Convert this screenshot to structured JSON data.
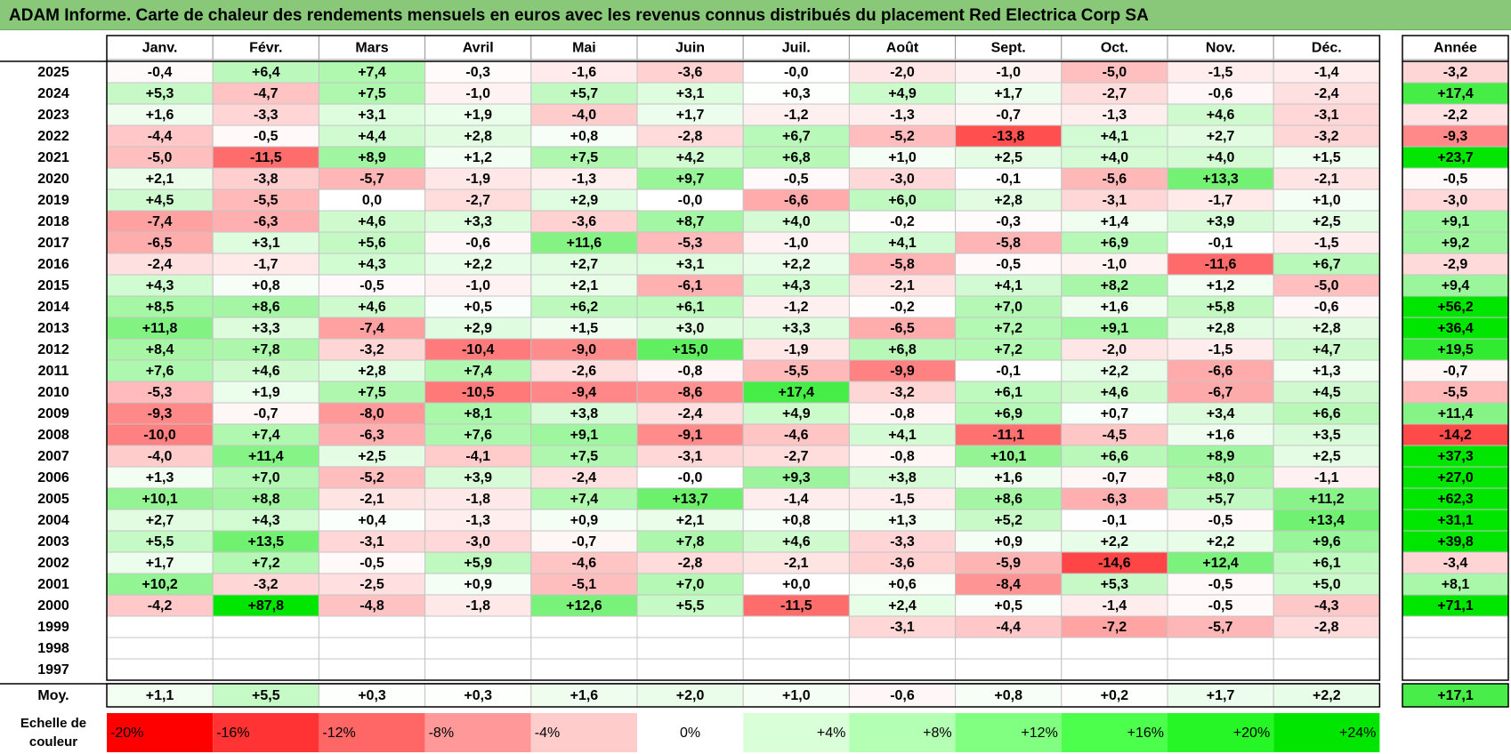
{
  "title": "ADAM Informe. Carte de chaleur des rendements mensuels en euros avec les revenus connus distribués du placement Red Electrica Corp SA",
  "chart_data": {
    "type": "heatmap",
    "title": "ADAM Informe. Carte de chaleur des rendements mensuels en euros avec les revenus connus distribués du placement Red Electrica Corp SA",
    "months": [
      "Janv.",
      "Févr.",
      "Mars",
      "Avril",
      "Mai",
      "Juin",
      "Juil.",
      "Août",
      "Sept.",
      "Oct.",
      "Nov.",
      "Déc."
    ],
    "year_column_label": "Année",
    "rows": [
      {
        "year": "2025",
        "values": [
          "-0,4",
          "+6,4",
          "+7,4",
          "-0,3",
          "-1,6",
          "-3,6",
          "-0,0",
          "-2,0",
          "-1,0",
          "-5,0",
          "-1,5",
          "-1,4"
        ],
        "annual": "-3,2"
      },
      {
        "year": "2024",
        "values": [
          "+5,3",
          "-4,7",
          "+7,5",
          "-1,0",
          "+5,7",
          "+3,1",
          "+0,3",
          "+4,9",
          "+1,7",
          "-2,7",
          "-0,6",
          "-2,4"
        ],
        "annual": "+17,4"
      },
      {
        "year": "2023",
        "values": [
          "+1,6",
          "-3,3",
          "+3,1",
          "+1,9",
          "-4,0",
          "+1,7",
          "-1,2",
          "-1,3",
          "-0,7",
          "-1,3",
          "+4,6",
          "-3,1"
        ],
        "annual": "-2,2"
      },
      {
        "year": "2022",
        "values": [
          "-4,4",
          "-0,5",
          "+4,4",
          "+2,8",
          "+0,8",
          "-2,8",
          "+6,7",
          "-5,2",
          "-13,8",
          "+4,1",
          "+2,7",
          "-3,2"
        ],
        "annual": "-9,3"
      },
      {
        "year": "2021",
        "values": [
          "-5,0",
          "-11,5",
          "+8,9",
          "+1,2",
          "+7,5",
          "+4,2",
          "+6,8",
          "+1,0",
          "+2,5",
          "+4,0",
          "+4,0",
          "+1,5"
        ],
        "annual": "+23,7"
      },
      {
        "year": "2020",
        "values": [
          "+2,1",
          "-3,8",
          "-5,7",
          "-1,9",
          "-1,3",
          "+9,7",
          "-0,5",
          "-3,0",
          "-0,1",
          "-5,6",
          "+13,3",
          "-2,1"
        ],
        "annual": "-0,5"
      },
      {
        "year": "2019",
        "values": [
          "+4,5",
          "-5,5",
          "0,0",
          "-2,7",
          "+2,9",
          "-0,0",
          "-6,6",
          "+6,0",
          "+2,8",
          "-3,1",
          "-1,7",
          "+1,0"
        ],
        "annual": "-3,0"
      },
      {
        "year": "2018",
        "values": [
          "-7,4",
          "-6,3",
          "+4,6",
          "+3,3",
          "-3,6",
          "+8,7",
          "+4,0",
          "-0,2",
          "-0,3",
          "+1,4",
          "+3,9",
          "+2,5"
        ],
        "annual": "+9,1"
      },
      {
        "year": "2017",
        "values": [
          "-6,5",
          "+3,1",
          "+5,6",
          "-0,6",
          "+11,6",
          "-5,3",
          "-1,0",
          "+4,1",
          "-5,8",
          "+6,9",
          "-0,1",
          "-1,5"
        ],
        "annual": "+9,2"
      },
      {
        "year": "2016",
        "values": [
          "-2,4",
          "-1,7",
          "+4,3",
          "+2,2",
          "+2,7",
          "+3,1",
          "+2,2",
          "-5,8",
          "-0,5",
          "-1,0",
          "-11,6",
          "+6,7"
        ],
        "annual": "-2,9"
      },
      {
        "year": "2015",
        "values": [
          "+4,3",
          "+0,8",
          "-0,5",
          "-1,0",
          "+2,1",
          "-6,1",
          "+4,3",
          "-2,1",
          "+4,1",
          "+8,2",
          "+1,2",
          "-5,0"
        ],
        "annual": "+9,4"
      },
      {
        "year": "2014",
        "values": [
          "+8,5",
          "+8,6",
          "+4,6",
          "+0,5",
          "+6,2",
          "+6,1",
          "-1,2",
          "-0,2",
          "+7,0",
          "+1,6",
          "+5,8",
          "-0,6"
        ],
        "annual": "+56,2"
      },
      {
        "year": "2013",
        "values": [
          "+11,8",
          "+3,3",
          "-7,4",
          "+2,9",
          "+1,5",
          "+3,0",
          "+3,3",
          "-6,5",
          "+7,2",
          "+9,1",
          "+2,8",
          "+2,8"
        ],
        "annual": "+36,4"
      },
      {
        "year": "2012",
        "values": [
          "+8,4",
          "+7,8",
          "-3,2",
          "-10,4",
          "-9,0",
          "+15,0",
          "-1,9",
          "+6,8",
          "+7,2",
          "-2,0",
          "-1,5",
          "+4,7"
        ],
        "annual": "+19,5"
      },
      {
        "year": "2011",
        "values": [
          "+7,6",
          "+4,6",
          "+2,8",
          "+7,4",
          "-2,6",
          "-0,8",
          "-5,5",
          "-9,9",
          "-0,1",
          "+2,2",
          "-6,6",
          "+1,3"
        ],
        "annual": "-0,7"
      },
      {
        "year": "2010",
        "values": [
          "-5,3",
          "+1,9",
          "+7,5",
          "-10,5",
          "-9,4",
          "-8,6",
          "+17,4",
          "-3,2",
          "+6,1",
          "+4,6",
          "-6,7",
          "+4,5"
        ],
        "annual": "-5,5"
      },
      {
        "year": "2009",
        "values": [
          "-9,3",
          "-0,7",
          "-8,0",
          "+8,1",
          "+3,8",
          "-2,4",
          "+4,9",
          "-0,8",
          "+6,9",
          "+0,7",
          "+3,4",
          "+6,6"
        ],
        "annual": "+11,4"
      },
      {
        "year": "2008",
        "values": [
          "-10,0",
          "+7,4",
          "-6,3",
          "+7,6",
          "+9,1",
          "-9,1",
          "-4,6",
          "+4,1",
          "-11,1",
          "-4,5",
          "+1,6",
          "+3,5"
        ],
        "annual": "-14,2"
      },
      {
        "year": "2007",
        "values": [
          "-4,0",
          "+11,4",
          "+2,5",
          "-4,1",
          "+7,5",
          "-3,1",
          "-2,7",
          "-0,8",
          "+10,1",
          "+6,6",
          "+8,9",
          "+2,5"
        ],
        "annual": "+37,3"
      },
      {
        "year": "2006",
        "values": [
          "+1,3",
          "+7,0",
          "-5,2",
          "+3,9",
          "-2,4",
          "-0,0",
          "+9,3",
          "+3,8",
          "+1,6",
          "-0,7",
          "+8,0",
          "-1,1"
        ],
        "annual": "+27,0"
      },
      {
        "year": "2005",
        "values": [
          "+10,1",
          "+8,8",
          "-2,1",
          "-1,8",
          "+7,4",
          "+13,7",
          "-1,4",
          "-1,5",
          "+8,6",
          "-6,3",
          "+5,7",
          "+11,2"
        ],
        "annual": "+62,3"
      },
      {
        "year": "2004",
        "values": [
          "+2,7",
          "+4,3",
          "+0,4",
          "-1,3",
          "+0,9",
          "+2,1",
          "+0,8",
          "+1,3",
          "+5,2",
          "-0,1",
          "-0,5",
          "+13,4"
        ],
        "annual": "+31,1"
      },
      {
        "year": "2003",
        "values": [
          "+5,5",
          "+13,5",
          "-3,1",
          "-3,0",
          "-0,7",
          "+7,8",
          "+4,6",
          "-3,3",
          "+0,9",
          "+2,2",
          "+2,2",
          "+9,6"
        ],
        "annual": "+39,8"
      },
      {
        "year": "2002",
        "values": [
          "+1,7",
          "+7,2",
          "-0,5",
          "+5,9",
          "-4,6",
          "-2,8",
          "-2,1",
          "-3,6",
          "-5,9",
          "-14,6",
          "+12,4",
          "+6,1"
        ],
        "annual": "-3,4"
      },
      {
        "year": "2001",
        "values": [
          "+10,2",
          "-3,2",
          "-2,5",
          "+0,9",
          "-5,1",
          "+7,0",
          "+0,0",
          "+0,6",
          "-8,4",
          "+5,3",
          "-0,5",
          "+5,0"
        ],
        "annual": "+8,1"
      },
      {
        "year": "2000",
        "values": [
          "-4,2",
          "+87,8",
          "-4,8",
          "-1,8",
          "+12,6",
          "+5,5",
          "-11,5",
          "+2,4",
          "+0,5",
          "-1,4",
          "-0,5",
          "-4,3"
        ],
        "annual": "+71,1"
      },
      {
        "year": "1999",
        "values": [
          "",
          "",
          "",
          "",
          "",
          "",
          "",
          "-3,1",
          "-4,4",
          "-7,2",
          "-5,7",
          "-2,8"
        ],
        "annual": ""
      },
      {
        "year": "1998",
        "values": [
          "",
          "",
          "",
          "",
          "",
          "",
          "",
          "",
          "",
          "",
          "",
          ""
        ],
        "annual": ""
      },
      {
        "year": "1997",
        "values": [
          "",
          "",
          "",
          "",
          "",
          "",
          "",
          "",
          "",
          "",
          "",
          ""
        ],
        "annual": ""
      }
    ],
    "average": {
      "label": "Moy.",
      "values": [
        "+1,1",
        "+5,5",
        "+0,3",
        "+0,3",
        "+1,6",
        "+2,0",
        "+1,0",
        "-0,6",
        "+0,8",
        "+0,2",
        "+1,7",
        "+2,2"
      ],
      "annual": "+17,1"
    },
    "color_scale": {
      "label_line1": "Echelle de",
      "label_line2": "couleur",
      "stops": [
        {
          "label": "-20%",
          "value": -20,
          "color": "#ff0000"
        },
        {
          "label": "-16%",
          "value": -16,
          "color": "#ff3333"
        },
        {
          "label": "-12%",
          "value": -12,
          "color": "#ff6666"
        },
        {
          "label": "-8%",
          "value": -8,
          "color": "#ff9999"
        },
        {
          "label": "-4%",
          "value": -4,
          "color": "#ffcccc"
        },
        {
          "label": "0%",
          "value": 0,
          "color": "#ffffff"
        },
        {
          "label": "+4%",
          "value": 4,
          "color": "#d9ffd9"
        },
        {
          "label": "+8%",
          "value": 8,
          "color": "#b3ffb3"
        },
        {
          "label": "+12%",
          "value": 12,
          "color": "#80ff80"
        },
        {
          "label": "+16%",
          "value": 16,
          "color": "#4dff4d"
        },
        {
          "label": "+20%",
          "value": 20,
          "color": "#26f526"
        },
        {
          "label": "+24%",
          "value": 24,
          "color": "#00e600"
        }
      ]
    }
  }
}
